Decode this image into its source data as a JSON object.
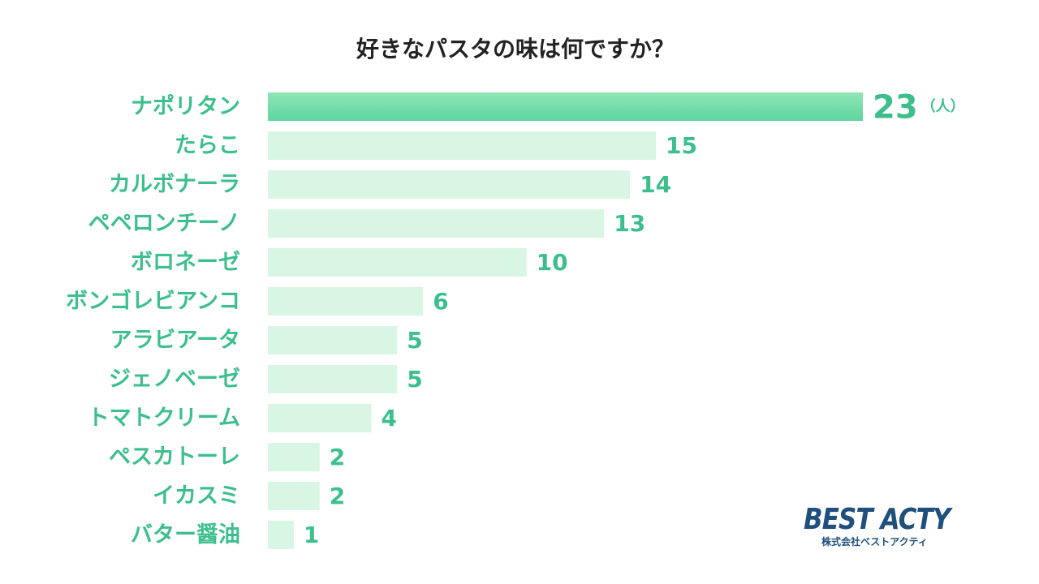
{
  "colors": {
    "highlight_bar": "#5fd59f",
    "highlight_bar_top": "#8fe6b5",
    "bar": "#d9f5e4",
    "label": "#3cbf8d",
    "title": "#222222",
    "logo": "#1f4f7c"
  },
  "logo": {
    "main": "BEST ACTY",
    "sub": "株式会社ベストアクティ"
  },
  "chart_data": {
    "type": "bar",
    "orientation": "horizontal",
    "title": "好きなパスタの味は何ですか？",
    "unit": "（人）",
    "categories": [
      "ナポリタン",
      "たらこ",
      "カルボナーラ",
      "ペペロンチーノ",
      "ボロネーゼ",
      "ボンゴレビアンコ",
      "アラビアータ",
      "ジェノベーゼ",
      "トマトクリーム",
      "ペスカトーレ",
      "イカスミ",
      "バター醤油"
    ],
    "values": [
      23,
      15,
      14,
      13,
      10,
      6,
      5,
      5,
      4,
      2,
      2,
      1
    ],
    "value_labels": [
      "23",
      "15",
      "14",
      "13",
      "10",
      "6",
      "5",
      "5",
      "4",
      "2",
      "2",
      "1"
    ],
    "highlight_index": 0,
    "xlim": [
      0,
      23
    ],
    "grid": false,
    "legend": "none"
  }
}
